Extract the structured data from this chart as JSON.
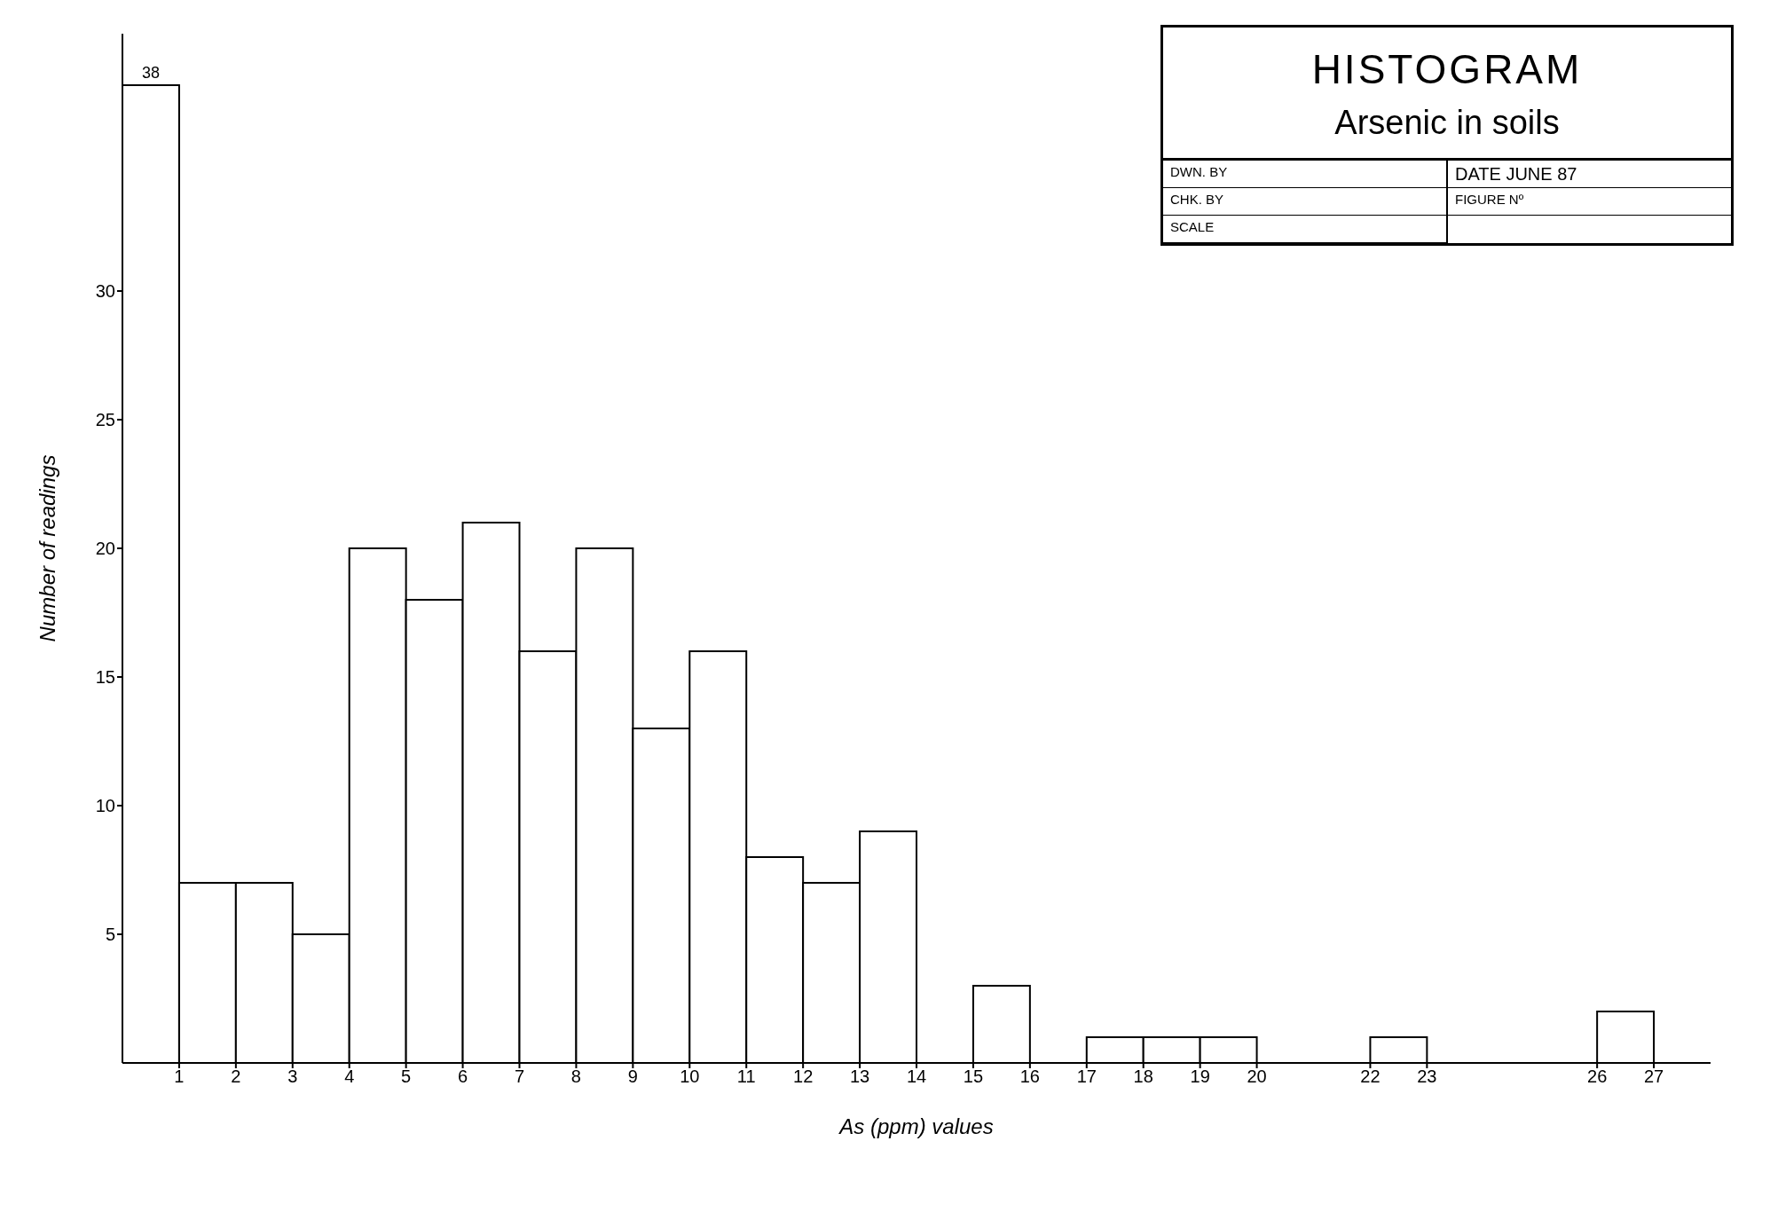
{
  "chart_data": {
    "type": "histogram",
    "title": "HISTOGRAM",
    "subtitle": "Arsenic in soils",
    "xlabel": "As (ppm) values",
    "ylabel": "Number of readings",
    "bins": [
      0,
      1,
      2,
      3,
      4,
      5,
      6,
      7,
      8,
      9,
      10,
      11,
      12,
      13,
      14,
      15,
      16,
      17,
      18,
      19,
      20,
      22,
      23,
      26,
      27
    ],
    "values": [
      38,
      7,
      7,
      5,
      20,
      18,
      21,
      16,
      20,
      13,
      16,
      8,
      7,
      9,
      0,
      3,
      0,
      1,
      1,
      1,
      0,
      1,
      0,
      2
    ],
    "value_labels": [
      "38",
      null,
      null,
      null,
      null,
      null,
      null,
      null,
      null,
      null,
      null,
      null,
      null,
      null,
      null,
      null,
      null,
      null,
      null,
      null,
      null,
      null,
      null,
      null
    ],
    "color": "#ffffff",
    "xlim": [
      0,
      28
    ],
    "xticks": [
      1,
      2,
      3,
      4,
      5,
      6,
      7,
      8,
      9,
      10,
      11,
      12,
      13,
      14,
      15,
      16,
      17,
      18,
      19,
      20,
      22,
      23,
      26,
      27
    ],
    "ylim": [
      0,
      40
    ],
    "yticks": [
      5,
      10,
      15,
      20,
      25,
      30
    ],
    "annotations": [
      "DWN. BY",
      "CHK. BY",
      "SCALE",
      "DATE JUNE 87",
      "FIGURE Nº"
    ]
  }
}
